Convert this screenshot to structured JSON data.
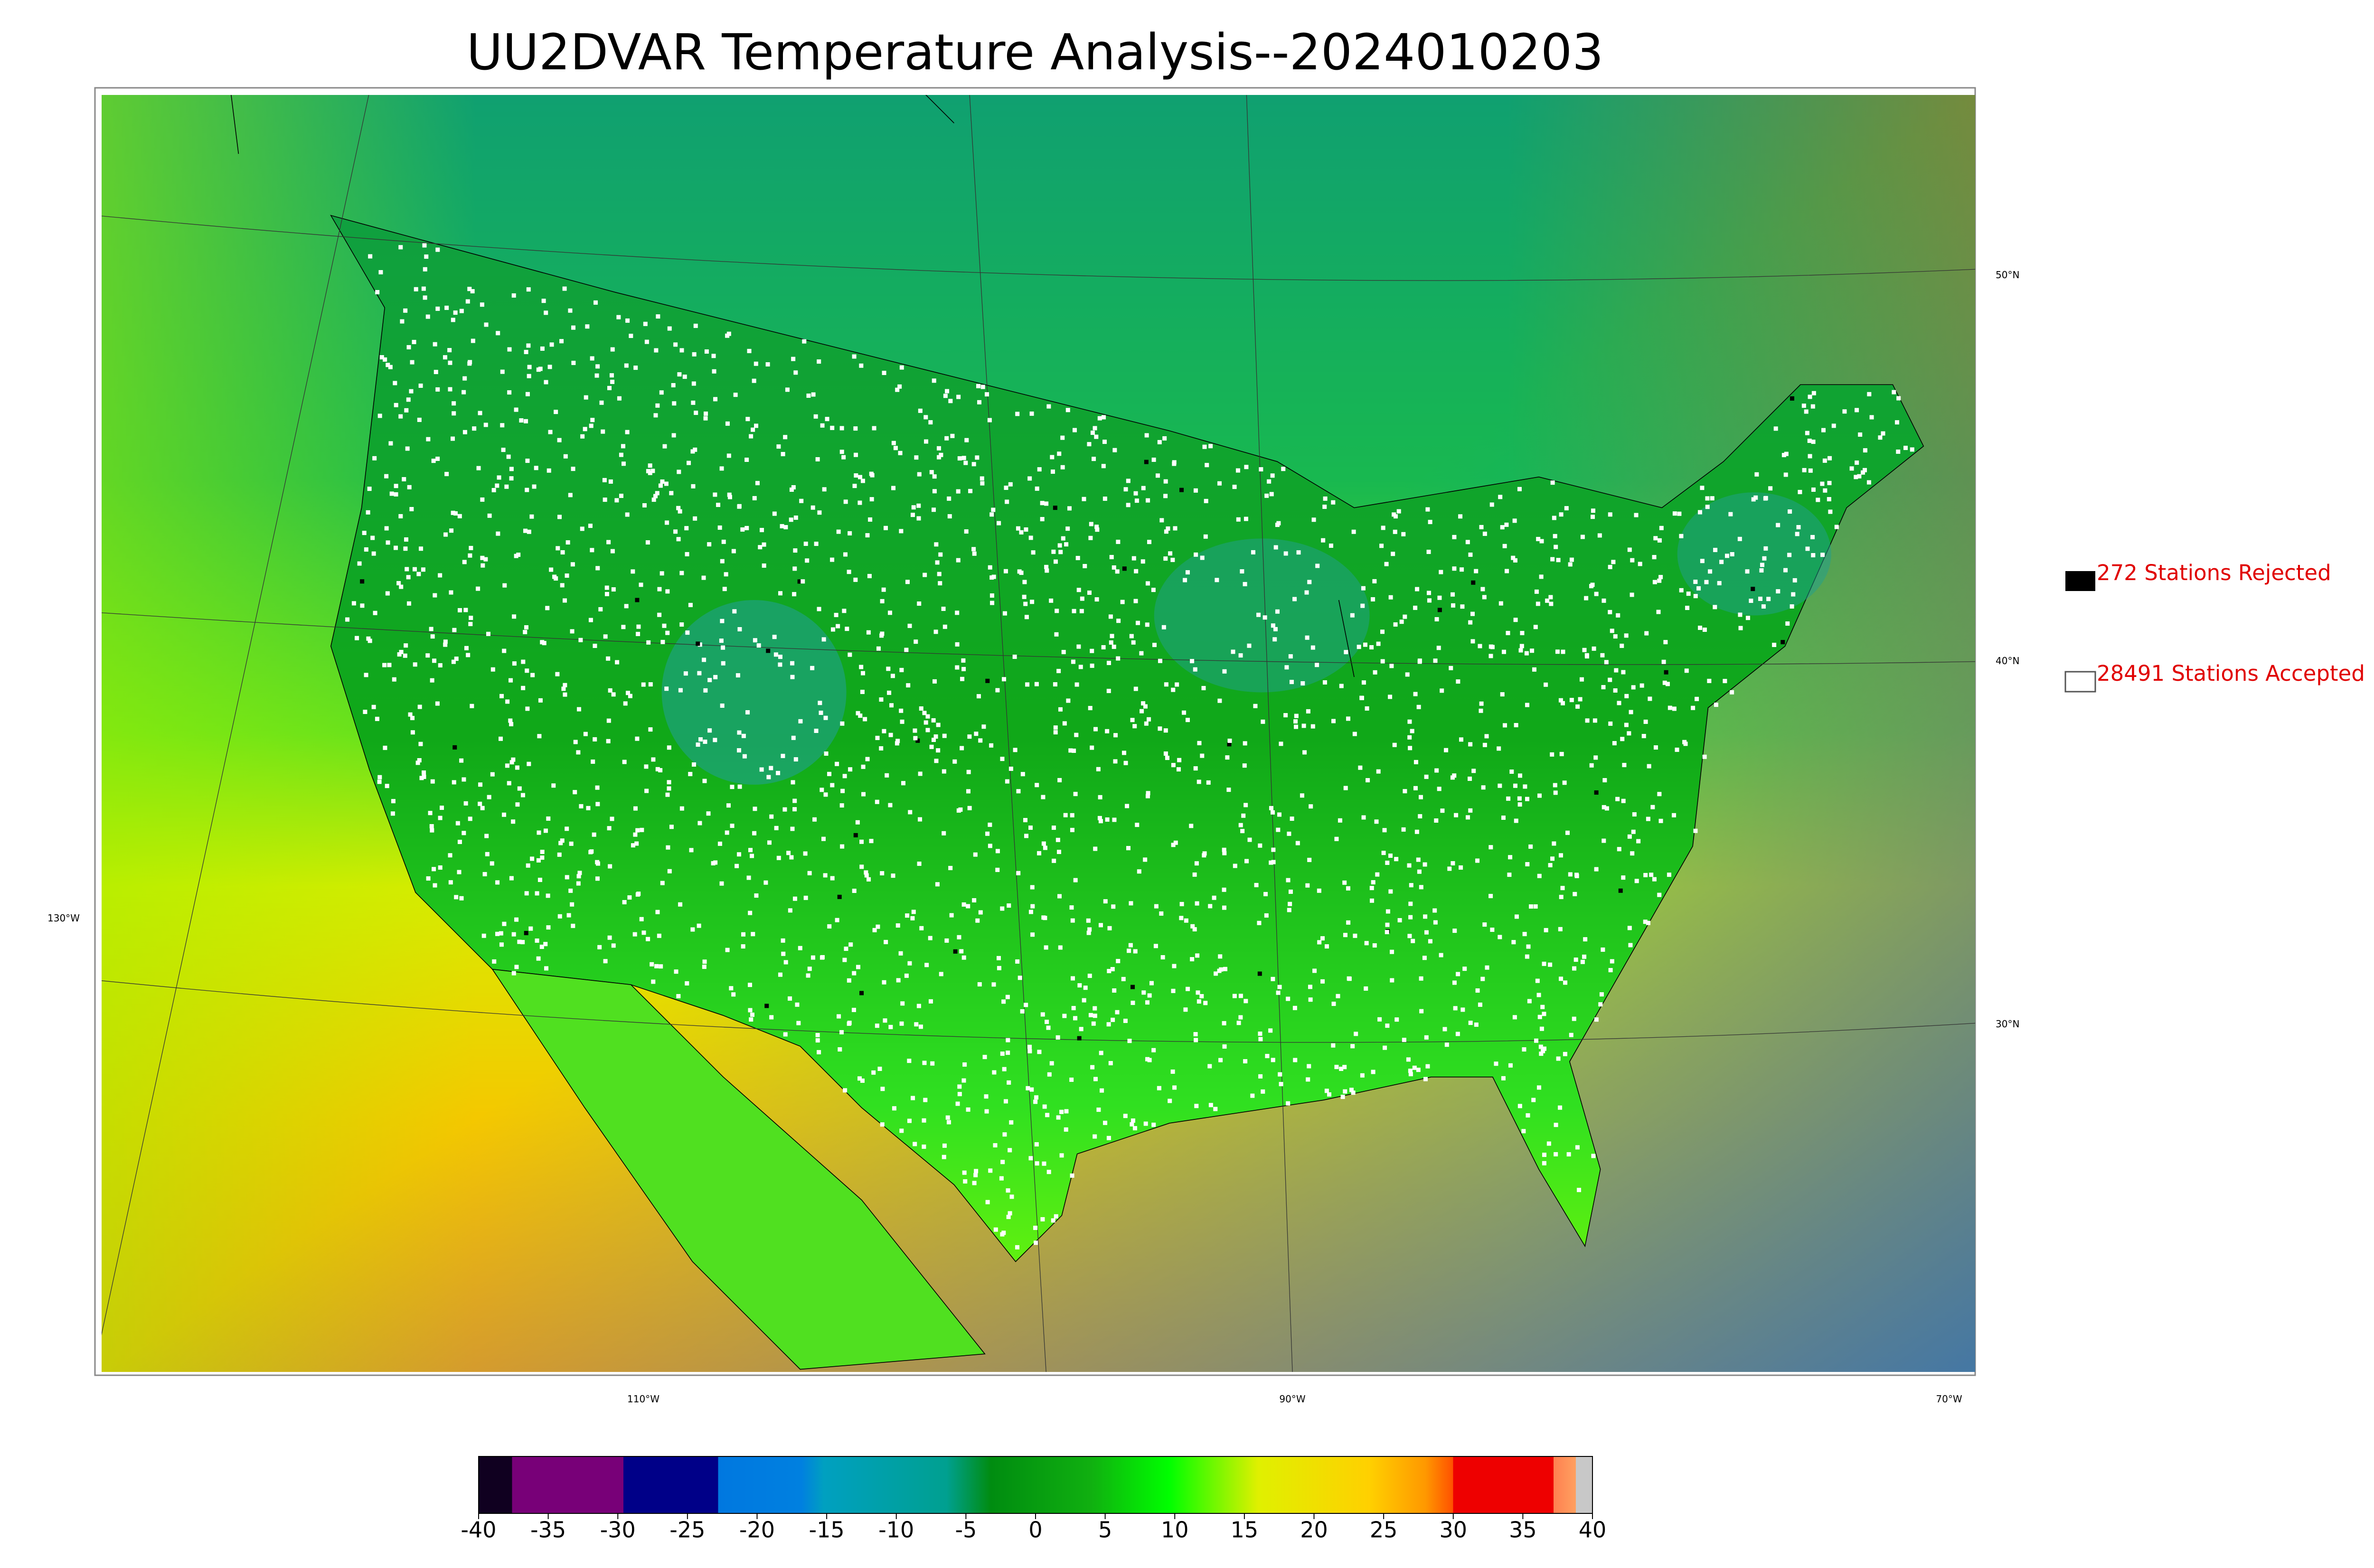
{
  "title": "UU2DVAR Temperature Analysis--2024010203",
  "legend": [
    {
      "label": "272 Stations Rejected"
    },
    {
      "label": "28491 Stations Accepted"
    }
  ],
  "lat_labels": [
    "50°N",
    "40°N",
    "30°N"
  ],
  "lon_labels": [
    "130°W",
    "110°W",
    "90°W",
    "70°W"
  ],
  "colorbar": {
    "ticks": [
      -40,
      -35,
      -30,
      -25,
      -20,
      -15,
      -10,
      -5,
      0,
      5,
      10,
      15,
      20,
      25,
      30,
      35,
      40
    ]
  }
}
